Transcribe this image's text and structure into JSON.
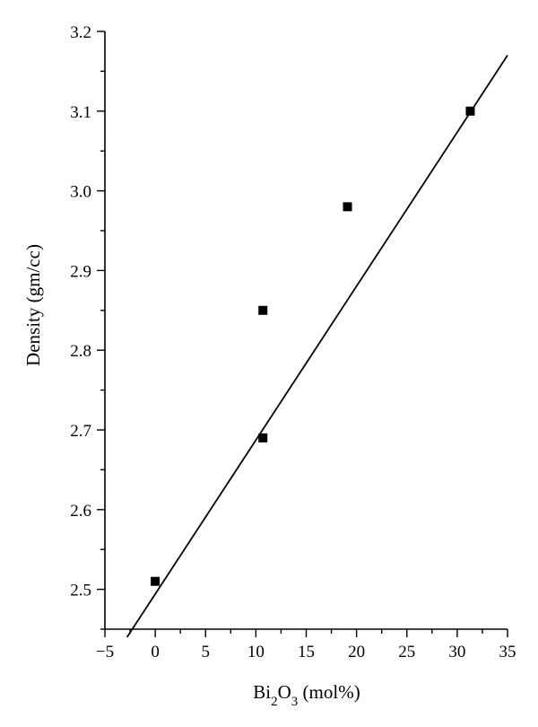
{
  "chart_data": {
    "type": "scatter",
    "title": "",
    "xlabel": {
      "base": "Bi",
      "sub1": "2",
      "mid": "O",
      "sub2": "3",
      "suffix": " (mol%)"
    },
    "ylabel": "Density (gm/cc)",
    "xlim": [
      -5,
      35
    ],
    "ylim": [
      2.45,
      3.2
    ],
    "x_ticks": [
      -5,
      0,
      5,
      10,
      15,
      20,
      25,
      30,
      35
    ],
    "x_tick_labels": [
      "−5",
      "0",
      "5",
      "10",
      "15",
      "20",
      "25",
      "30",
      "35"
    ],
    "y_ticks": [
      2.5,
      2.6,
      2.7,
      2.8,
      2.9,
      3.0,
      3.1,
      3.2
    ],
    "y_tick_labels": [
      "2.5",
      "2.6",
      "2.7",
      "2.8",
      "2.9",
      "3.0",
      "3.1",
      "3.2"
    ],
    "grid": false,
    "series": [
      {
        "marker": "square",
        "x": [
          0,
          10.7,
          10.7,
          19.1,
          31.3
        ],
        "y": [
          2.51,
          2.69,
          2.85,
          2.98,
          3.1
        ]
      }
    ],
    "fit_line": {
      "x": [
        -2.8,
        35
      ],
      "y": [
        2.44,
        3.17
      ]
    },
    "color": "#000000"
  }
}
